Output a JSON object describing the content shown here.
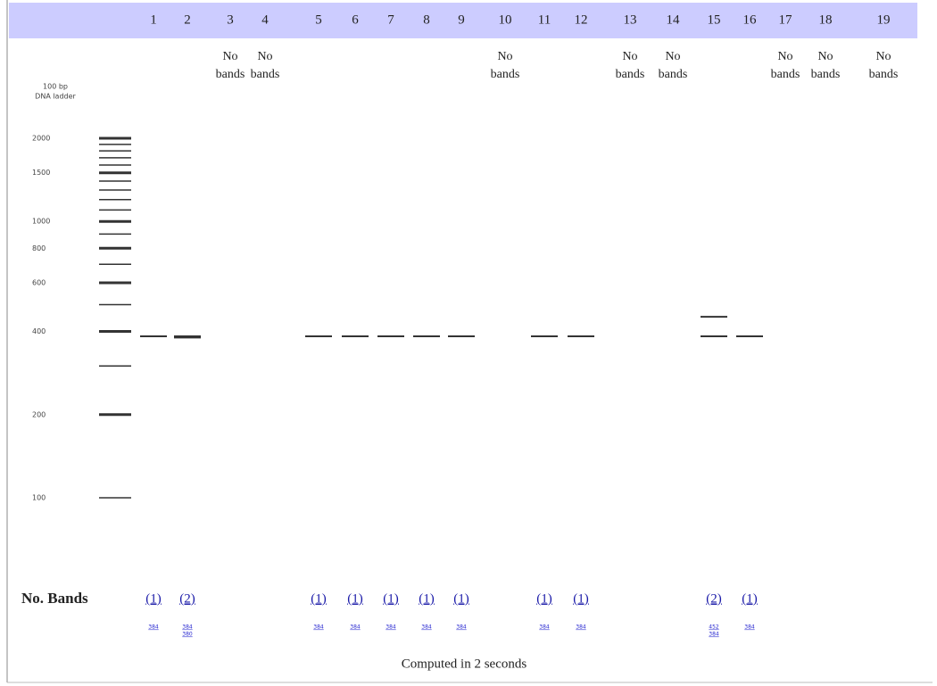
{
  "ladder": {
    "title_line1": "100 bp",
    "title_line2": "DNA ladder",
    "labels": [
      2000,
      1500,
      1000,
      800,
      600,
      400,
      200,
      100
    ],
    "bands": [
      100,
      200,
      300,
      400,
      500,
      600,
      700,
      800,
      900,
      1000,
      1100,
      1200,
      1300,
      1400,
      1500,
      1600,
      1700,
      1800,
      1900,
      2000
    ]
  },
  "lanes": [
    {
      "lane": 1,
      "count": "(1)",
      "bands": [
        384
      ]
    },
    {
      "lane": 2,
      "count": "(2)",
      "bands": [
        384,
        380
      ]
    },
    {
      "lane": 3,
      "note1": "No",
      "note2": "bands"
    },
    {
      "lane": 4,
      "note1": "No",
      "note2": "bands"
    },
    {
      "lane": 5,
      "count": "(1)",
      "bands": [
        384
      ]
    },
    {
      "lane": 6,
      "count": "(1)",
      "bands": [
        384
      ]
    },
    {
      "lane": 7,
      "count": "(1)",
      "bands": [
        384
      ]
    },
    {
      "lane": 8,
      "count": "(1)",
      "bands": [
        384
      ]
    },
    {
      "lane": 9,
      "count": "(1)",
      "bands": [
        384
      ]
    },
    {
      "lane": 10,
      "note1": "No",
      "note2": "bands"
    },
    {
      "lane": 11,
      "count": "(1)",
      "bands": [
        384
      ]
    },
    {
      "lane": 12,
      "count": "(1)",
      "bands": [
        384
      ]
    },
    {
      "lane": 13,
      "note1": "No",
      "note2": "bands"
    },
    {
      "lane": 14,
      "note1": "No",
      "note2": "bands"
    },
    {
      "lane": 15,
      "count": "(2)",
      "bands": [
        452,
        384
      ]
    },
    {
      "lane": 16,
      "count": "(1)",
      "bands": [
        384
      ]
    },
    {
      "lane": 17,
      "note1": "No",
      "note2": "bands"
    },
    {
      "lane": 18,
      "note1": "No",
      "note2": "bands"
    },
    {
      "lane": 19,
      "note1": "No",
      "note2": "bands"
    }
  ],
  "row_label": "No. Bands",
  "footer": "Computed in 2 seconds"
}
